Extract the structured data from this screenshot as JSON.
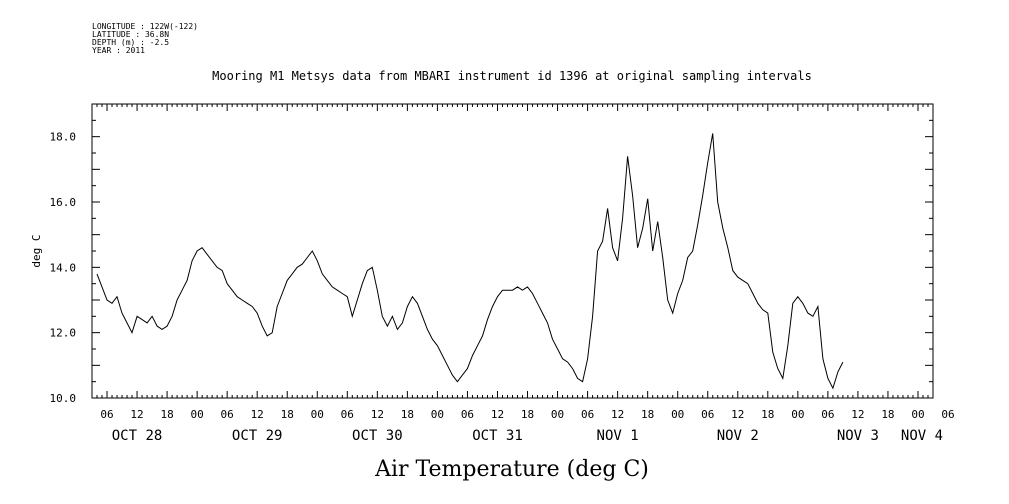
{
  "header": {
    "meta_lines": [
      "LONGITUDE : 122W(-122)",
      "LATITUDE : 36.8N",
      "DEPTH (m) : -2.5",
      "YEAR : 2011"
    ]
  },
  "chart_data": {
    "type": "line",
    "title": "Mooring M1 Metsys data from MBARI instrument id 1396 at original sampling intervals",
    "xlabel": "Air Temperature (deg C)",
    "ylabel": "deg C",
    "ylim": [
      10.0,
      19.0
    ],
    "xlim_hours": [
      3,
      171
    ],
    "y_ticks": [
      "10.0",
      "12.0",
      "14.0",
      "16.0",
      "18.0"
    ],
    "hour_tick_labels": [
      "06",
      "12",
      "18",
      "00",
      "06",
      "12",
      "18",
      "00",
      "06",
      "12",
      "18",
      "00",
      "06",
      "12",
      "18",
      "00",
      "06",
      "12",
      "18",
      "00",
      "06",
      "12",
      "18",
      "00",
      "06",
      "12",
      "18",
      "00",
      "06"
    ],
    "day_labels": [
      "OCT 28",
      "OCT 29",
      "OCT 30",
      "OCT 31",
      "NOV  1",
      "NOV  2",
      "NOV  3",
      "NOV  4"
    ],
    "grid": false,
    "series": [
      {
        "values": [
          [
            4,
            13.8
          ],
          [
            5,
            13.4
          ],
          [
            6,
            13.0
          ],
          [
            7,
            12.9
          ],
          [
            8,
            13.1
          ],
          [
            9,
            12.6
          ],
          [
            10,
            12.3
          ],
          [
            11,
            12.0
          ],
          [
            12,
            12.5
          ],
          [
            13,
            12.4
          ],
          [
            14,
            12.3
          ],
          [
            15,
            12.5
          ],
          [
            16,
            12.2
          ],
          [
            17,
            12.1
          ],
          [
            18,
            12.2
          ],
          [
            19,
            12.5
          ],
          [
            20,
            13.0
          ],
          [
            21,
            13.3
          ],
          [
            22,
            13.6
          ],
          [
            23,
            14.2
          ],
          [
            24,
            14.5
          ],
          [
            25,
            14.6
          ],
          [
            26,
            14.4
          ],
          [
            27,
            14.2
          ],
          [
            28,
            14.0
          ],
          [
            29,
            13.9
          ],
          [
            30,
            13.5
          ],
          [
            31,
            13.3
          ],
          [
            32,
            13.1
          ],
          [
            33,
            13.0
          ],
          [
            34,
            12.9
          ],
          [
            35,
            12.8
          ],
          [
            36,
            12.6
          ],
          [
            37,
            12.2
          ],
          [
            38,
            11.9
          ],
          [
            39,
            12.0
          ],
          [
            40,
            12.8
          ],
          [
            41,
            13.2
          ],
          [
            42,
            13.6
          ],
          [
            43,
            13.8
          ],
          [
            44,
            14.0
          ],
          [
            45,
            14.1
          ],
          [
            46,
            14.3
          ],
          [
            47,
            14.5
          ],
          [
            48,
            14.2
          ],
          [
            49,
            13.8
          ],
          [
            50,
            13.6
          ],
          [
            51,
            13.4
          ],
          [
            52,
            13.3
          ],
          [
            53,
            13.2
          ],
          [
            54,
            13.1
          ],
          [
            55,
            12.5
          ],
          [
            56,
            13.0
          ],
          [
            57,
            13.5
          ],
          [
            58,
            13.9
          ],
          [
            59,
            14.0
          ],
          [
            60,
            13.3
          ],
          [
            61,
            12.5
          ],
          [
            62,
            12.2
          ],
          [
            63,
            12.5
          ],
          [
            64,
            12.1
          ],
          [
            65,
            12.3
          ],
          [
            66,
            12.8
          ],
          [
            67,
            13.1
          ],
          [
            68,
            12.9
          ],
          [
            69,
            12.5
          ],
          [
            70,
            12.1
          ],
          [
            71,
            11.8
          ],
          [
            72,
            11.6
          ],
          [
            73,
            11.3
          ],
          [
            74,
            11.0
          ],
          [
            75,
            10.7
          ],
          [
            76,
            10.5
          ],
          [
            77,
            10.7
          ],
          [
            78,
            10.9
          ],
          [
            79,
            11.3
          ],
          [
            80,
            11.6
          ],
          [
            81,
            11.9
          ],
          [
            82,
            12.4
          ],
          [
            83,
            12.8
          ],
          [
            84,
            13.1
          ],
          [
            85,
            13.3
          ],
          [
            86,
            13.3
          ],
          [
            87,
            13.3
          ],
          [
            88,
            13.4
          ],
          [
            89,
            13.3
          ],
          [
            90,
            13.4
          ],
          [
            91,
            13.2
          ],
          [
            92,
            12.9
          ],
          [
            93,
            12.6
          ],
          [
            94,
            12.3
          ],
          [
            95,
            11.8
          ],
          [
            96,
            11.5
          ],
          [
            97,
            11.2
          ],
          [
            98,
            11.1
          ],
          [
            99,
            10.9
          ],
          [
            100,
            10.6
          ],
          [
            101,
            10.5
          ],
          [
            102,
            11.2
          ],
          [
            103,
            12.5
          ],
          [
            104,
            14.5
          ],
          [
            105,
            14.8
          ],
          [
            106,
            15.8
          ],
          [
            107,
            14.6
          ],
          [
            108,
            14.2
          ],
          [
            109,
            15.5
          ],
          [
            110,
            17.4
          ],
          [
            111,
            16.2
          ],
          [
            112,
            14.6
          ],
          [
            113,
            15.2
          ],
          [
            114,
            16.1
          ],
          [
            115,
            14.5
          ],
          [
            116,
            15.4
          ],
          [
            117,
            14.3
          ],
          [
            118,
            13.0
          ],
          [
            119,
            12.6
          ],
          [
            120,
            13.2
          ],
          [
            121,
            13.6
          ],
          [
            122,
            14.3
          ],
          [
            123,
            14.5
          ],
          [
            124,
            15.3
          ],
          [
            125,
            16.2
          ],
          [
            126,
            17.2
          ],
          [
            127,
            18.1
          ],
          [
            128,
            16.0
          ],
          [
            129,
            15.2
          ],
          [
            130,
            14.6
          ],
          [
            131,
            13.9
          ],
          [
            132,
            13.7
          ],
          [
            133,
            13.6
          ],
          [
            134,
            13.5
          ],
          [
            135,
            13.2
          ],
          [
            136,
            12.9
          ],
          [
            137,
            12.7
          ],
          [
            138,
            12.6
          ],
          [
            139,
            11.4
          ],
          [
            140,
            10.9
          ],
          [
            141,
            10.6
          ],
          [
            142,
            11.6
          ],
          [
            143,
            12.9
          ],
          [
            144,
            13.1
          ],
          [
            145,
            12.9
          ],
          [
            146,
            12.6
          ],
          [
            147,
            12.5
          ],
          [
            148,
            12.8
          ],
          [
            149,
            11.2
          ],
          [
            150,
            10.6
          ],
          [
            151,
            10.3
          ],
          [
            152,
            10.8
          ],
          [
            153,
            11.1
          ]
        ]
      }
    ]
  }
}
